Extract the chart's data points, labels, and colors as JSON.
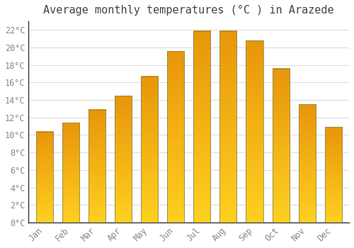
{
  "title": "Average monthly temperatures (°C ) in Arazede",
  "months": [
    "Jan",
    "Feb",
    "Mar",
    "Apr",
    "May",
    "Jun",
    "Jul",
    "Aug",
    "Sep",
    "Oct",
    "Nov",
    "Dec"
  ],
  "values": [
    10.4,
    11.4,
    12.9,
    14.5,
    16.7,
    19.6,
    21.9,
    21.9,
    20.8,
    17.6,
    13.5,
    10.9
  ],
  "bar_color_top": "#E8960A",
  "bar_color_bottom": "#FFD020",
  "bar_edge_color": "#888855",
  "background_color": "#FFFFFF",
  "grid_color": "#DDDDDD",
  "ylim": [
    0,
    23
  ],
  "ytick_step": 2,
  "title_fontsize": 11,
  "tick_fontsize": 8.5,
  "font_family": "monospace",
  "title_color": "#444444",
  "tick_color": "#888888"
}
